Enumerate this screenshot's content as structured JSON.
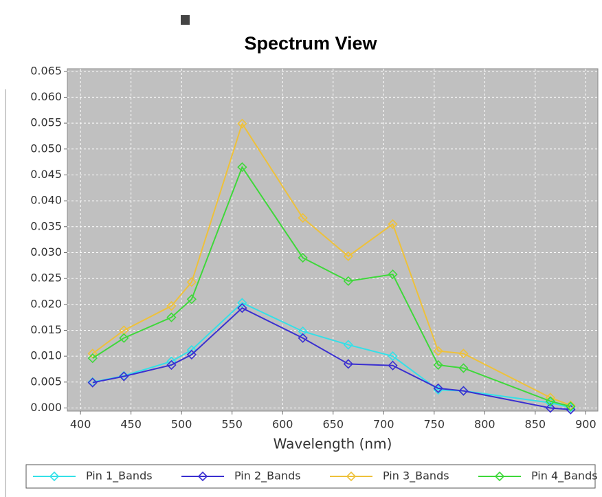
{
  "chart_data": {
    "type": "line",
    "title": "Spectrum View",
    "x_label": "Wavelength (nm)",
    "x": [
      412,
      443,
      490,
      510,
      560,
      620,
      665,
      709,
      754,
      779,
      865,
      885
    ],
    "series": [
      {
        "name": "Pin 1_Bands",
        "color": "#33e0e8",
        "values": [
          0.005,
          0.0062,
          0.009,
          0.0112,
          0.0203,
          0.0148,
          0.0122,
          0.01,
          0.0035,
          0.0033,
          0.001,
          0.0001
        ]
      },
      {
        "name": "Pin 2_Bands",
        "color": "#3a2fd0",
        "values": [
          0.0049,
          0.0061,
          0.0083,
          0.0103,
          0.0193,
          0.0135,
          0.0085,
          0.0082,
          0.0038,
          0.0033,
          0.0,
          -0.0003
        ]
      },
      {
        "name": "Pin 3_Bands",
        "color": "#eec13a",
        "values": [
          0.0105,
          0.015,
          0.0197,
          0.0243,
          0.0549,
          0.0367,
          0.0293,
          0.0355,
          0.011,
          0.0105,
          0.002,
          0.0005
        ]
      },
      {
        "name": "Pin 4_Bands",
        "color": "#3ed83a",
        "values": [
          0.0096,
          0.0135,
          0.0175,
          0.021,
          0.0465,
          0.029,
          0.0245,
          0.0258,
          0.0083,
          0.0077,
          0.0013,
          0.0003
        ]
      }
    ],
    "xlim": [
      387,
      912
    ],
    "ylim": [
      -0.0006,
      0.0655
    ],
    "xticks": [
      400,
      450,
      500,
      550,
      600,
      650,
      700,
      750,
      800,
      850,
      900
    ],
    "yticks": [
      {
        "value": 0,
        "label": "0.000"
      },
      {
        "value": 0.005,
        "label": "0.005"
      },
      {
        "value": 0.01,
        "label": "0.010"
      },
      {
        "value": 0.015,
        "label": "0.015"
      },
      {
        "value": 0.02,
        "label": "0.020"
      },
      {
        "value": 0.025,
        "label": "0.025"
      },
      {
        "value": 0.03,
        "label": "0.030"
      },
      {
        "value": 0.035,
        "label": "0.035"
      },
      {
        "value": 0.04,
        "label": "0.040"
      },
      {
        "value": 0.045,
        "label": "0.045"
      },
      {
        "value": 0.05,
        "label": "0.050"
      },
      {
        "value": 0.055,
        "label": "0.055"
      },
      {
        "value": 0.06,
        "label": "0.060"
      },
      {
        "value": 0.065,
        "label": "0.065"
      }
    ],
    "grid": true,
    "legend": "bottom"
  }
}
